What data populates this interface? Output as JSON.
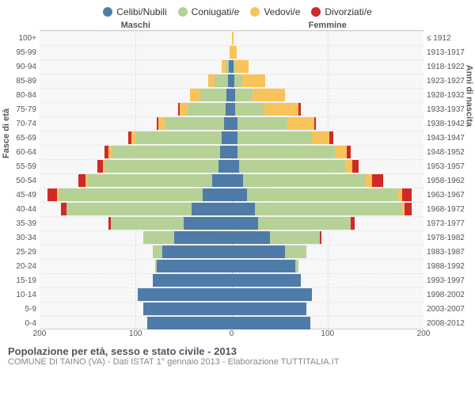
{
  "legend": [
    {
      "label": "Celibi/Nubili",
      "color": "#4f7ba8"
    },
    {
      "label": "Coniugati/e",
      "color": "#b5d196"
    },
    {
      "label": "Vedovi/e",
      "color": "#f8c45a"
    },
    {
      "label": "Divorziati/e",
      "color": "#cf2a27"
    }
  ],
  "gender": {
    "male": "Maschi",
    "female": "Femmine"
  },
  "axis": {
    "left_title": "Fasce di età",
    "right_title": "Anni di nascita",
    "xmax": 200,
    "xticks": [
      200,
      100,
      0,
      100,
      200
    ]
  },
  "colors": {
    "single": "#4f7ba8",
    "married": "#b5d196",
    "widowed": "#f8c45a",
    "divorced": "#cf2a27",
    "plot_bg": "#f7f7f7"
  },
  "footer": {
    "title": "Popolazione per età, sesso e stato civile - 2013",
    "subtitle": "COMUNE DI TAINO (VA) - Dati ISTAT 1° gennaio 2013 - Elaborazione TUTTITALIA.IT"
  },
  "rows": [
    {
      "age": "100+",
      "birth": "≤ 1912",
      "m": {
        "s": 0,
        "m": 0,
        "w": 0,
        "d": 0
      },
      "f": {
        "s": 0,
        "m": 0,
        "w": 2,
        "d": 0
      }
    },
    {
      "age": "95-99",
      "birth": "1913-1917",
      "m": {
        "s": 0,
        "m": 0,
        "w": 2,
        "d": 0
      },
      "f": {
        "s": 0,
        "m": 0,
        "w": 5,
        "d": 0
      }
    },
    {
      "age": "90-94",
      "birth": "1918-1922",
      "m": {
        "s": 3,
        "m": 3,
        "w": 4,
        "d": 0
      },
      "f": {
        "s": 2,
        "m": 2,
        "w": 14,
        "d": 0
      }
    },
    {
      "age": "85-89",
      "birth": "1923-1927",
      "m": {
        "s": 4,
        "m": 14,
        "w": 6,
        "d": 0
      },
      "f": {
        "s": 3,
        "m": 8,
        "w": 24,
        "d": 0
      }
    },
    {
      "age": "80-84",
      "birth": "1928-1932",
      "m": {
        "s": 5,
        "m": 28,
        "w": 10,
        "d": 0
      },
      "f": {
        "s": 4,
        "m": 18,
        "w": 34,
        "d": 0
      }
    },
    {
      "age": "75-79",
      "birth": "1933-1937",
      "m": {
        "s": 6,
        "m": 40,
        "w": 8,
        "d": 2
      },
      "f": {
        "s": 4,
        "m": 30,
        "w": 36,
        "d": 2
      }
    },
    {
      "age": "70-74",
      "birth": "1938-1942",
      "m": {
        "s": 8,
        "m": 62,
        "w": 6,
        "d": 2
      },
      "f": {
        "s": 6,
        "m": 52,
        "w": 28,
        "d": 2
      }
    },
    {
      "age": "65-69",
      "birth": "1943-1947",
      "m": {
        "s": 10,
        "m": 90,
        "w": 4,
        "d": 4
      },
      "f": {
        "s": 6,
        "m": 78,
        "w": 18,
        "d": 4
      }
    },
    {
      "age": "60-64",
      "birth": "1948-1952",
      "m": {
        "s": 12,
        "m": 112,
        "w": 4,
        "d": 4
      },
      "f": {
        "s": 6,
        "m": 102,
        "w": 12,
        "d": 4
      }
    },
    {
      "age": "55-59",
      "birth": "1953-1957",
      "m": {
        "s": 14,
        "m": 118,
        "w": 2,
        "d": 6
      },
      "f": {
        "s": 8,
        "m": 110,
        "w": 8,
        "d": 6
      }
    },
    {
      "age": "50-54",
      "birth": "1958-1962",
      "m": {
        "s": 20,
        "m": 130,
        "w": 2,
        "d": 8
      },
      "f": {
        "s": 12,
        "m": 128,
        "w": 6,
        "d": 12
      }
    },
    {
      "age": "45-49",
      "birth": "1963-1967",
      "m": {
        "s": 30,
        "m": 150,
        "w": 2,
        "d": 10
      },
      "f": {
        "s": 16,
        "m": 158,
        "w": 4,
        "d": 10
      }
    },
    {
      "age": "40-44",
      "birth": "1968-1972",
      "m": {
        "s": 42,
        "m": 130,
        "w": 0,
        "d": 6
      },
      "f": {
        "s": 24,
        "m": 154,
        "w": 2,
        "d": 8
      }
    },
    {
      "age": "35-39",
      "birth": "1973-1977",
      "m": {
        "s": 50,
        "m": 76,
        "w": 0,
        "d": 2
      },
      "f": {
        "s": 28,
        "m": 96,
        "w": 0,
        "d": 4
      }
    },
    {
      "age": "30-34",
      "birth": "1978-1982",
      "m": {
        "s": 60,
        "m": 32,
        "w": 0,
        "d": 0
      },
      "f": {
        "s": 40,
        "m": 52,
        "w": 0,
        "d": 2
      }
    },
    {
      "age": "25-29",
      "birth": "1983-1987",
      "m": {
        "s": 72,
        "m": 10,
        "w": 0,
        "d": 0
      },
      "f": {
        "s": 56,
        "m": 22,
        "w": 0,
        "d": 0
      }
    },
    {
      "age": "20-24",
      "birth": "1988-1992",
      "m": {
        "s": 78,
        "m": 2,
        "w": 0,
        "d": 0
      },
      "f": {
        "s": 66,
        "m": 4,
        "w": 0,
        "d": 0
      }
    },
    {
      "age": "15-19",
      "birth": "1993-1997",
      "m": {
        "s": 82,
        "m": 0,
        "w": 0,
        "d": 0
      },
      "f": {
        "s": 72,
        "m": 0,
        "w": 0,
        "d": 0
      }
    },
    {
      "age": "10-14",
      "birth": "1998-2002",
      "m": {
        "s": 98,
        "m": 0,
        "w": 0,
        "d": 0
      },
      "f": {
        "s": 84,
        "m": 0,
        "w": 0,
        "d": 0
      }
    },
    {
      "age": "5-9",
      "birth": "2003-2007",
      "m": {
        "s": 92,
        "m": 0,
        "w": 0,
        "d": 0
      },
      "f": {
        "s": 78,
        "m": 0,
        "w": 0,
        "d": 0
      }
    },
    {
      "age": "0-4",
      "birth": "2008-2012",
      "m": {
        "s": 88,
        "m": 0,
        "w": 0,
        "d": 0
      },
      "f": {
        "s": 82,
        "m": 0,
        "w": 0,
        "d": 0
      }
    }
  ]
}
